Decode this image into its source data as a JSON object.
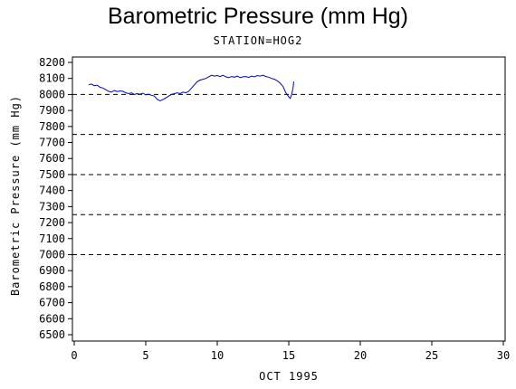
{
  "chart_data": {
    "type": "line",
    "title": "Barometric Pressure (mm Hg)",
    "subtitle": "STATION=HOG2",
    "xlabel": "OCT 1995",
    "ylabel": "Barometric Pressure (mm Hg)",
    "xlim": [
      0,
      30
    ],
    "ylim": [
      6500,
      8200
    ],
    "x_ticks": [
      0,
      5,
      10,
      15,
      20,
      25,
      30
    ],
    "x_tick_labels": [
      "0",
      "5",
      "10",
      "15",
      "20",
      "25",
      "30"
    ],
    "y_ticks": [
      6500,
      6600,
      6700,
      6800,
      6900,
      7000,
      7100,
      7200,
      7300,
      7400,
      7500,
      7600,
      7700,
      7800,
      7900,
      8000,
      8100,
      8200
    ],
    "y_tick_labels": [
      "6500",
      "6600",
      "6700",
      "6800",
      "6900",
      "7000",
      "7100",
      "7200",
      "7300",
      "7400",
      "7500",
      "7600",
      "7700",
      "7800",
      "7900",
      "8000",
      "8100",
      "8200"
    ],
    "reference_lines": [
      8000,
      7750,
      7500,
      7250,
      7000
    ],
    "grid": false,
    "colors": {
      "series": "#0000cc",
      "axis": "#000000",
      "reference": "#000000"
    },
    "series": [
      {
        "points": [
          [
            1.0,
            8060
          ],
          [
            1.2,
            8065
          ],
          [
            1.4,
            8055
          ],
          [
            1.6,
            8058
          ],
          [
            1.8,
            8045
          ],
          [
            2.0,
            8040
          ],
          [
            2.2,
            8030
          ],
          [
            2.4,
            8020
          ],
          [
            2.6,
            8015
          ],
          [
            2.8,
            8025
          ],
          [
            3.0,
            8018
          ],
          [
            3.2,
            8022
          ],
          [
            3.4,
            8020
          ],
          [
            3.6,
            8010
          ],
          [
            3.8,
            8005
          ],
          [
            4.0,
            8010
          ],
          [
            4.2,
            8000
          ],
          [
            4.4,
            8005
          ],
          [
            4.6,
            8002
          ],
          [
            4.8,
            8008
          ],
          [
            5.0,
            7998
          ],
          [
            5.2,
            8002
          ],
          [
            5.4,
            7995
          ],
          [
            5.6,
            7990
          ],
          [
            5.8,
            7970
          ],
          [
            6.0,
            7960
          ],
          [
            6.2,
            7968
          ],
          [
            6.4,
            7978
          ],
          [
            6.6,
            7990
          ],
          [
            6.8,
            8000
          ],
          [
            7.0,
            8005
          ],
          [
            7.2,
            8010
          ],
          [
            7.4,
            8005
          ],
          [
            7.6,
            8015
          ],
          [
            7.8,
            8010
          ],
          [
            8.0,
            8020
          ],
          [
            8.2,
            8040
          ],
          [
            8.4,
            8060
          ],
          [
            8.6,
            8080
          ],
          [
            8.8,
            8090
          ],
          [
            9.0,
            8095
          ],
          [
            9.2,
            8100
          ],
          [
            9.4,
            8110
          ],
          [
            9.6,
            8120
          ],
          [
            9.8,
            8115
          ],
          [
            10.0,
            8118
          ],
          [
            10.2,
            8112
          ],
          [
            10.4,
            8120
          ],
          [
            10.6,
            8110
          ],
          [
            10.8,
            8105
          ],
          [
            11.0,
            8112
          ],
          [
            11.2,
            8108
          ],
          [
            11.4,
            8115
          ],
          [
            11.6,
            8105
          ],
          [
            11.8,
            8110
          ],
          [
            12.0,
            8112
          ],
          [
            12.2,
            8106
          ],
          [
            12.4,
            8115
          ],
          [
            12.6,
            8110
          ],
          [
            12.8,
            8118
          ],
          [
            13.0,
            8115
          ],
          [
            13.2,
            8120
          ],
          [
            13.4,
            8112
          ],
          [
            13.6,
            8108
          ],
          [
            13.8,
            8100
          ],
          [
            14.0,
            8095
          ],
          [
            14.2,
            8085
          ],
          [
            14.4,
            8070
          ],
          [
            14.6,
            8050
          ],
          [
            14.8,
            8010
          ],
          [
            15.0,
            7985
          ],
          [
            15.1,
            7975
          ],
          [
            15.2,
            8000
          ],
          [
            15.3,
            8040
          ],
          [
            15.35,
            8080
          ]
        ]
      }
    ]
  }
}
